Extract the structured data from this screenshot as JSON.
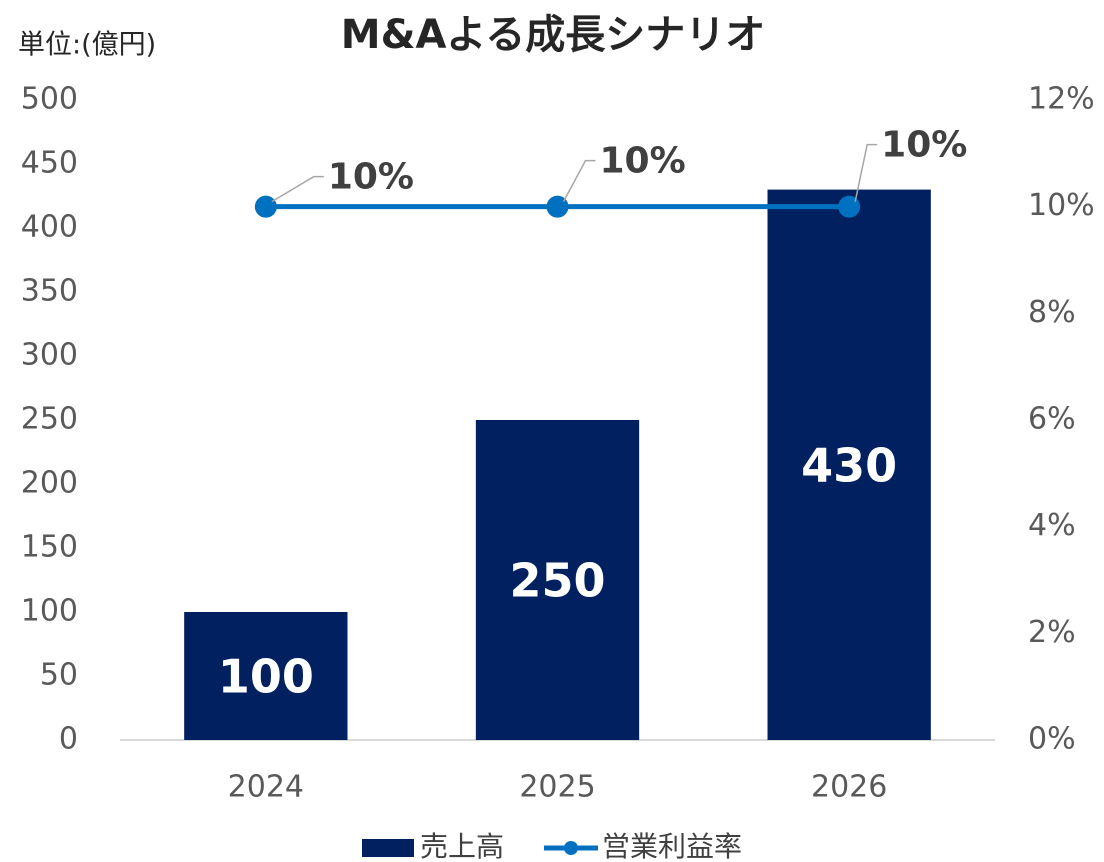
{
  "chart_data": {
    "type": "bar_line",
    "title": "M&Aよる成長シナリオ",
    "y_label": "単位:(億円)",
    "categories": [
      "2024",
      "2025",
      "2026"
    ],
    "series": [
      {
        "name": "売上高",
        "type": "bar",
        "color": "#002060",
        "values": [
          100,
          250,
          430
        ]
      },
      {
        "name": "営業利益率",
        "type": "line",
        "axis": "y2",
        "color": "#0070c0",
        "values": [
          10,
          10,
          10
        ],
        "value_labels": [
          "10%",
          "10%",
          "10%"
        ]
      }
    ],
    "ylim": [
      0,
      500
    ],
    "yticks": [
      0,
      50,
      100,
      150,
      200,
      250,
      300,
      350,
      400,
      450,
      500
    ],
    "y2lim": [
      0,
      12
    ],
    "y2ticks": [
      {
        "value": 0,
        "label": "0%"
      },
      {
        "value": 2,
        "label": "2%"
      },
      {
        "value": 4,
        "label": "4%"
      },
      {
        "value": 6,
        "label": "6%"
      },
      {
        "value": 8,
        "label": "8%"
      },
      {
        "value": 10,
        "label": "10%"
      },
      {
        "value": 12,
        "label": "12%"
      }
    ],
    "grid": false,
    "legend": "bottom"
  }
}
